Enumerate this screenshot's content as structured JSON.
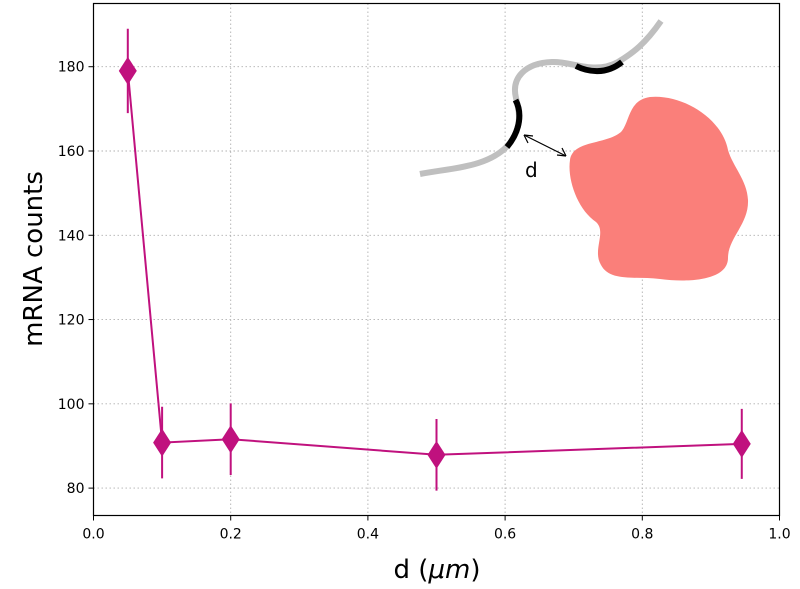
{
  "chart_data": {
    "type": "line",
    "title": "",
    "xlabel": "d (",
    "xlabel_unit": "μm",
    "xlabel_close": ")",
    "ylabel": "mRNA counts",
    "xlim": [
      0.0,
      1.0
    ],
    "ylim": [
      73.5,
      195
    ],
    "grid": true,
    "grid_style": "dotted",
    "x_ticks": [
      0.0,
      0.2,
      0.4,
      0.6,
      0.8,
      1.0
    ],
    "x_tick_labels": [
      "0.0",
      "0.2",
      "0.4",
      "0.6",
      "0.8",
      "1.0"
    ],
    "y_ticks": [
      80,
      100,
      120,
      140,
      160,
      180
    ],
    "y_tick_labels": [
      "80",
      "100",
      "120",
      "140",
      "160",
      "180"
    ],
    "series": [
      {
        "color": "#c0117e",
        "marker": "diamond",
        "x": [
          0.05,
          0.1,
          0.2,
          0.5,
          0.945
        ],
        "y": [
          179,
          90.8,
          91.6,
          87.9,
          90.5
        ],
        "yerr": [
          10,
          8.5,
          8.5,
          8.5,
          8.3
        ]
      }
    ],
    "inset": {
      "label": "d",
      "blob_color": "#fa7f7a",
      "strand_color": "#bfbfbf",
      "highlight_color": "#000000"
    }
  }
}
